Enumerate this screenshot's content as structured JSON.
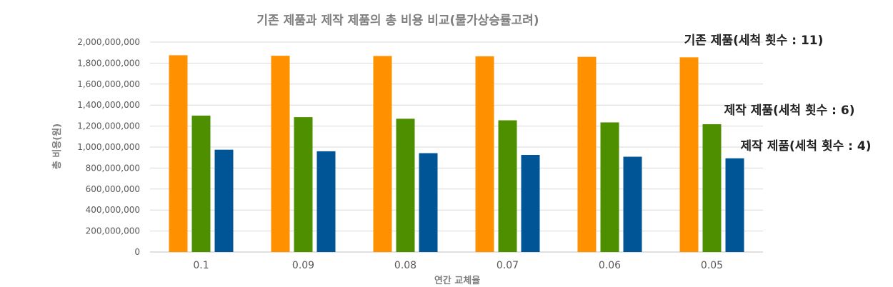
{
  "chart_data": {
    "type": "bar",
    "title": "기존 제품과 제작 제품의 총 비용 비교(물가상승률고려)",
    "xlabel": "연간 교체율",
    "ylabel": "총 비용(원)",
    "categories": [
      "0.1",
      "0.09",
      "0.08",
      "0.07",
      "0.06",
      "0.05"
    ],
    "ylim": [
      0,
      2000000000
    ],
    "yticks": [
      0,
      200000000,
      400000000,
      600000000,
      800000000,
      1000000000,
      1200000000,
      1400000000,
      1600000000,
      1800000000,
      2000000000
    ],
    "ytick_labels": [
      "0",
      "200,000,000",
      "400,000,000",
      "600,000,000",
      "800,000,000",
      "1,000,000,000",
      "1,200,000,000",
      "1,400,000,000",
      "1,600,000,000",
      "1,800,000,000",
      "2,000,000,000"
    ],
    "grid": true,
    "series": [
      {
        "values": [
          1875000000,
          1870000000,
          1868000000,
          1865000000,
          1860000000,
          1855000000
        ],
        "color": "#ff9100"
      },
      {
        "values": [
          1300000000,
          1285000000,
          1270000000,
          1255000000,
          1235000000,
          1218000000
        ],
        "color": "#4e8f00"
      },
      {
        "values": [
          975000000,
          960000000,
          942000000,
          925000000,
          908000000,
          893000000
        ],
        "color": "#005596"
      }
    ],
    "annotations": [
      {
        "text": "기존 제품(세척 횟수 : 11)",
        "series": 0
      },
      {
        "text": "제작 제품(세척 횟수 : 6)",
        "series": 1
      },
      {
        "text": "제작 제품(세척 횟수 : 4)",
        "series": 2
      }
    ]
  }
}
